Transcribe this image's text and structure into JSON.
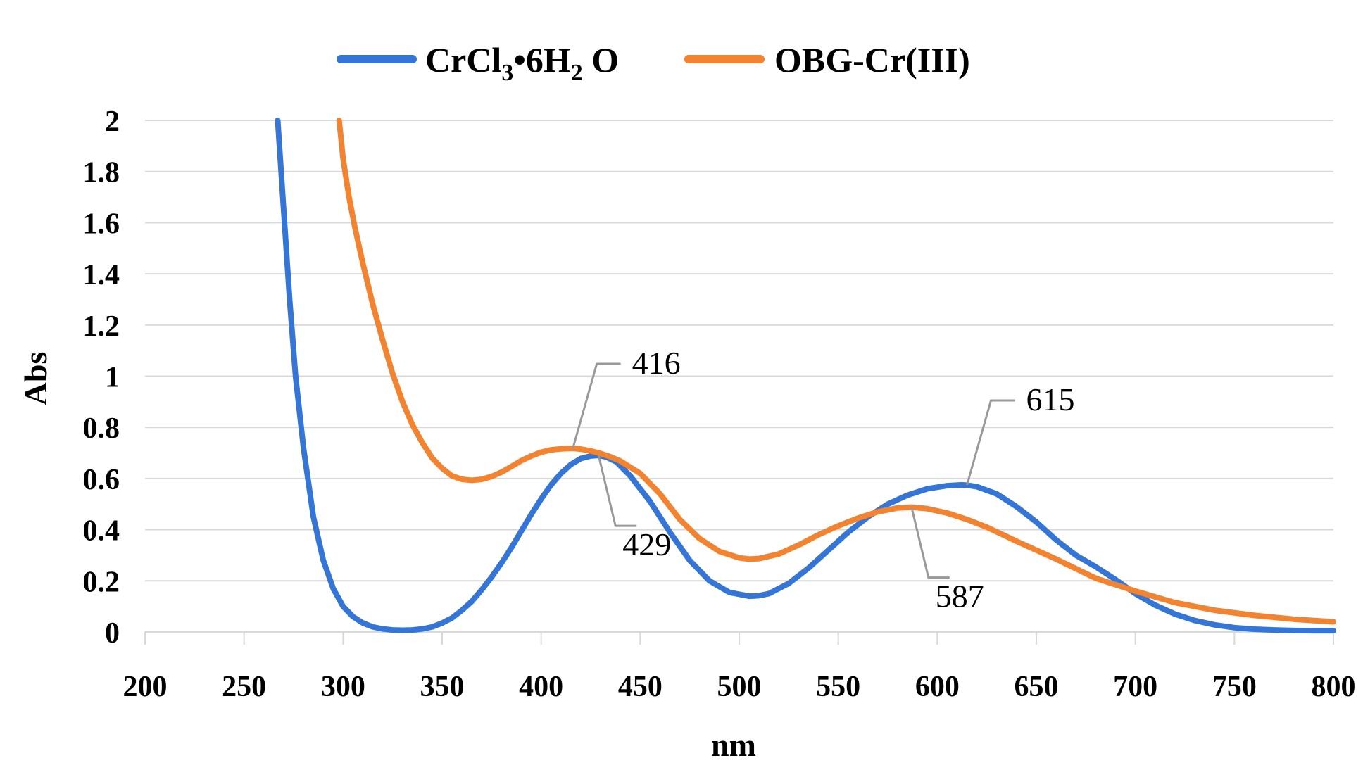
{
  "chart_data": {
    "type": "line",
    "title": "",
    "xlabel": "nm",
    "ylabel": "Abs",
    "xlim": [
      200,
      800
    ],
    "ylim": [
      0,
      2
    ],
    "x_ticks": [
      200,
      250,
      300,
      350,
      400,
      450,
      500,
      550,
      600,
      650,
      700,
      750,
      800
    ],
    "y_ticks": [
      0,
      0.2,
      0.4,
      0.6,
      0.8,
      1,
      1.2,
      1.4,
      1.6,
      1.8,
      2
    ],
    "x_tick_labels": [
      "200",
      "250",
      "300",
      "350",
      "400",
      "450",
      "500",
      "550",
      "600",
      "650",
      "700",
      "750",
      "800"
    ],
    "y_tick_labels": [
      "0",
      "0.2",
      "0.4",
      "0.6",
      "0.8",
      "1",
      "1.2",
      "1.4",
      "1.6",
      "1.8",
      "2"
    ],
    "grid": true,
    "legend_position": "top-center",
    "series": [
      {
        "name": "CrCl3•6H2O",
        "legend_parts": {
          "prefix": "CrCl",
          "sub1": "3",
          "middle": "•6H",
          "sub2": "2",
          "suffix": " O"
        },
        "color": "#3575D5",
        "x": [
          267,
          270,
          273,
          276,
          280,
          285,
          290,
          295,
          300,
          305,
          310,
          315,
          320,
          325,
          330,
          335,
          340,
          345,
          350,
          355,
          360,
          365,
          370,
          375,
          380,
          385,
          390,
          395,
          400,
          405,
          410,
          415,
          420,
          425,
          429,
          433,
          438,
          445,
          455,
          465,
          475,
          485,
          495,
          505,
          510,
          515,
          525,
          535,
          545,
          555,
          565,
          575,
          585,
          595,
          605,
          612,
          615,
          620,
          630,
          640,
          650,
          660,
          670,
          680,
          690,
          700,
          710,
          720,
          730,
          740,
          750,
          760,
          770,
          780,
          790,
          800
        ],
        "y": [
          2.0,
          1.65,
          1.3,
          1.0,
          0.72,
          0.45,
          0.28,
          0.17,
          0.1,
          0.06,
          0.035,
          0.02,
          0.012,
          0.008,
          0.007,
          0.008,
          0.012,
          0.02,
          0.035,
          0.055,
          0.085,
          0.12,
          0.165,
          0.215,
          0.27,
          0.33,
          0.395,
          0.46,
          0.52,
          0.575,
          0.62,
          0.655,
          0.678,
          0.688,
          0.69,
          0.684,
          0.665,
          0.61,
          0.51,
          0.39,
          0.28,
          0.2,
          0.155,
          0.14,
          0.142,
          0.15,
          0.19,
          0.25,
          0.32,
          0.39,
          0.45,
          0.5,
          0.535,
          0.56,
          0.572,
          0.575,
          0.574,
          0.568,
          0.54,
          0.49,
          0.43,
          0.36,
          0.3,
          0.255,
          0.205,
          0.15,
          0.105,
          0.07,
          0.045,
          0.028,
          0.017,
          0.011,
          0.008,
          0.006,
          0.005,
          0.005
        ]
      },
      {
        "name": "OBG-Cr(III)",
        "color": "#F28330",
        "x": [
          298,
          300,
          303,
          306,
          310,
          315,
          320,
          325,
          330,
          335,
          340,
          345,
          350,
          355,
          360,
          365,
          370,
          375,
          380,
          385,
          390,
          395,
          400,
          405,
          410,
          416,
          420,
          425,
          430,
          435,
          440,
          450,
          460,
          470,
          480,
          490,
          500,
          505,
          510,
          520,
          530,
          540,
          550,
          560,
          570,
          580,
          587,
          595,
          605,
          615,
          625,
          640,
          660,
          680,
          700,
          720,
          740,
          760,
          780,
          800
        ],
        "y": [
          2.0,
          1.85,
          1.7,
          1.58,
          1.44,
          1.28,
          1.14,
          1.01,
          0.9,
          0.81,
          0.74,
          0.68,
          0.64,
          0.61,
          0.597,
          0.593,
          0.597,
          0.608,
          0.625,
          0.647,
          0.67,
          0.688,
          0.703,
          0.712,
          0.716,
          0.718,
          0.715,
          0.708,
          0.698,
          0.685,
          0.668,
          0.62,
          0.54,
          0.44,
          0.365,
          0.315,
          0.29,
          0.285,
          0.287,
          0.305,
          0.34,
          0.38,
          0.415,
          0.445,
          0.47,
          0.485,
          0.488,
          0.482,
          0.465,
          0.44,
          0.41,
          0.355,
          0.285,
          0.21,
          0.16,
          0.115,
          0.085,
          0.065,
          0.05,
          0.04
        ]
      }
    ],
    "annotations": [
      {
        "label": "416",
        "series": "OBG-Cr(III)",
        "x": 416,
        "y": 0.718,
        "anchor": "upper-right"
      },
      {
        "label": "429",
        "series": "CrCl3•6H2O",
        "x": 429,
        "y": 0.69,
        "anchor": "lower-right"
      },
      {
        "label": "615",
        "series": "CrCl3•6H2O",
        "x": 615,
        "y": 0.575,
        "anchor": "upper-right"
      },
      {
        "label": "587",
        "series": "OBG-Cr(III)",
        "x": 587,
        "y": 0.488,
        "anchor": "lower-right"
      }
    ]
  }
}
